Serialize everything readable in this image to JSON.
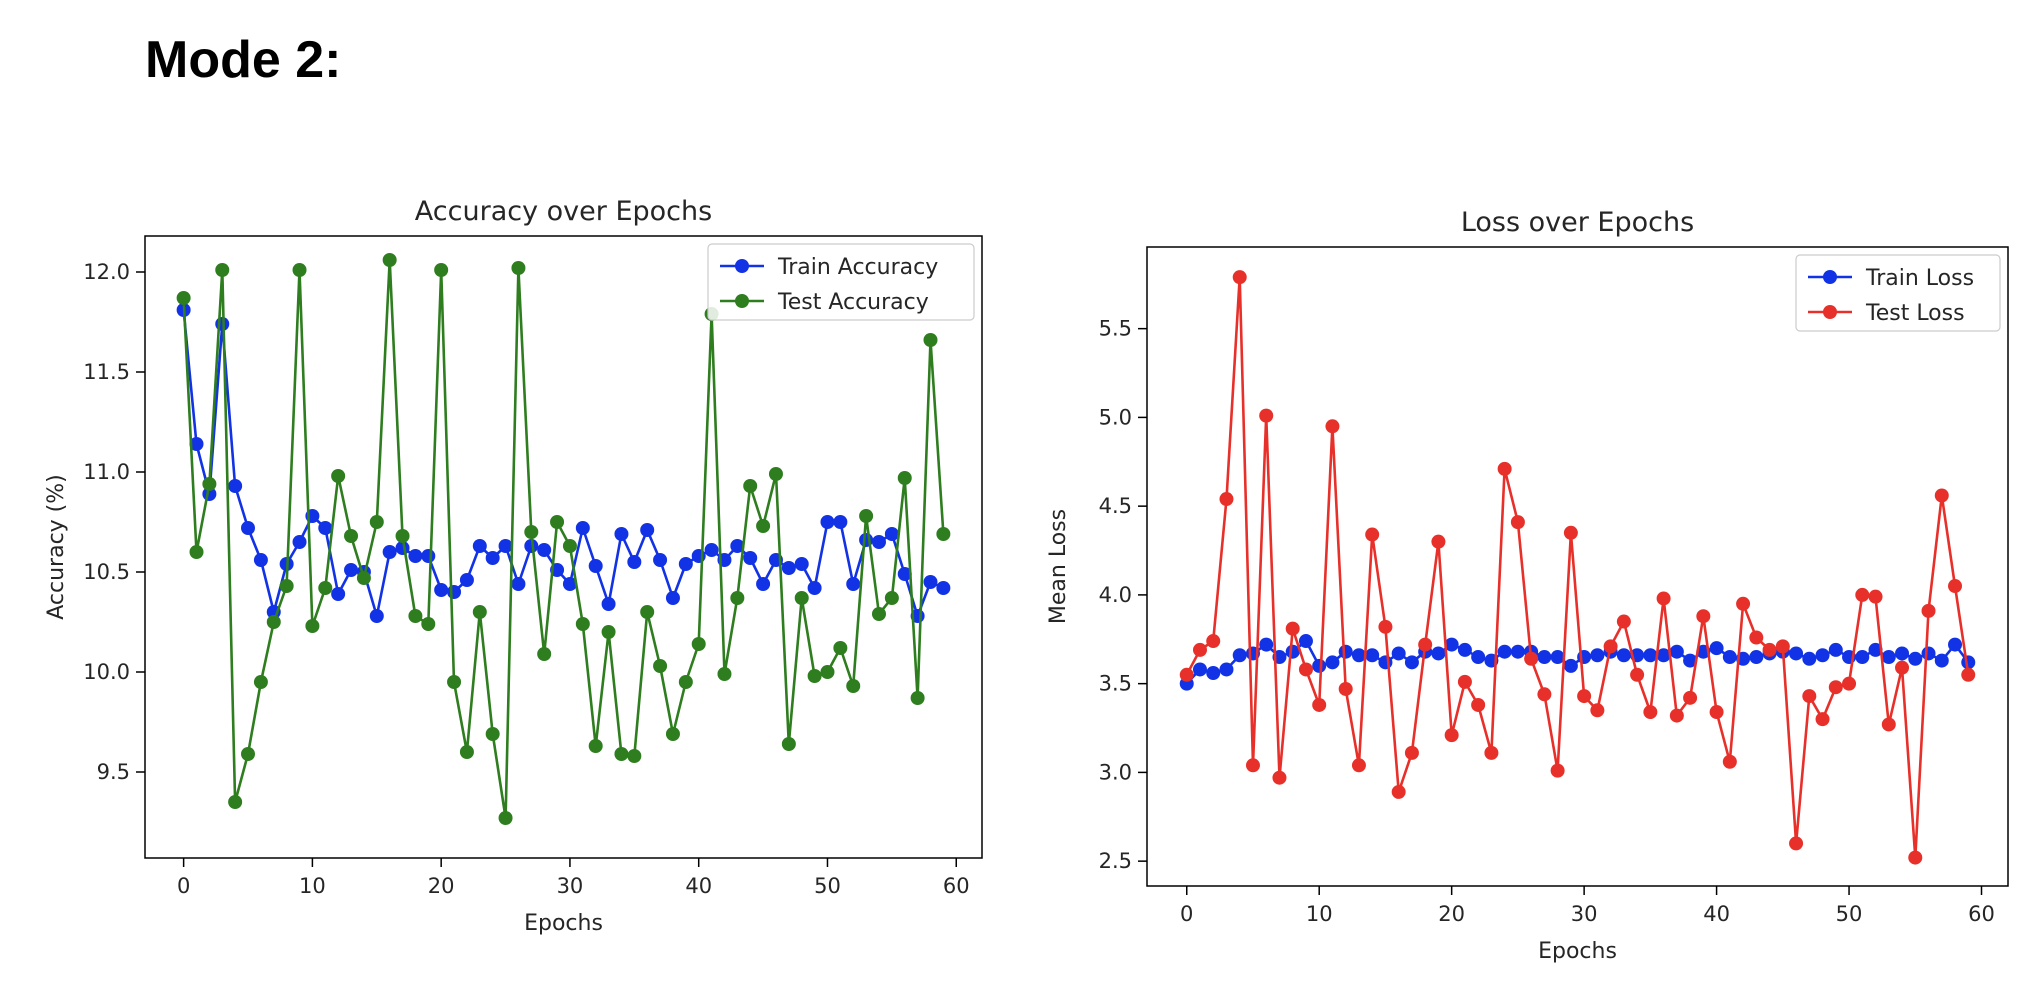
{
  "heading": "Mode 2:",
  "colors": {
    "train": "#1232e6",
    "test_acc": "#2e7d1f",
    "test_loss": "#e8302a"
  },
  "chart_data": [
    {
      "type": "line",
      "title": "Accuracy over Epochs",
      "xlabel": "Epochs",
      "ylabel": "Accuracy (%)",
      "xlim": [
        -3,
        62
      ],
      "ylim": [
        9.07,
        12.18
      ],
      "xticks": [
        0,
        10,
        20,
        30,
        40,
        50,
        60
      ],
      "yticks": [
        9.5,
        10.0,
        10.5,
        11.0,
        11.5,
        12.0
      ],
      "ytick_decimals": 1,
      "legend": "top-right",
      "grid": false,
      "x": [
        0,
        1,
        2,
        3,
        4,
        5,
        6,
        7,
        8,
        9,
        10,
        11,
        12,
        13,
        14,
        15,
        16,
        17,
        18,
        19,
        20,
        21,
        22,
        23,
        24,
        25,
        26,
        27,
        28,
        29,
        30,
        31,
        32,
        33,
        34,
        35,
        36,
        37,
        38,
        39,
        40,
        41,
        42,
        43,
        44,
        45,
        46,
        47,
        48,
        49,
        50,
        51,
        52,
        53,
        54,
        55,
        56,
        57,
        58,
        59
      ],
      "series": [
        {
          "name": "Train Accuracy",
          "color": "#1232e6",
          "values": [
            11.81,
            11.14,
            10.89,
            11.74,
            10.93,
            10.72,
            10.56,
            10.3,
            10.54,
            10.65,
            10.78,
            10.72,
            10.39,
            10.51,
            10.5,
            10.28,
            10.6,
            10.62,
            10.58,
            10.58,
            10.41,
            10.4,
            10.46,
            10.63,
            10.57,
            10.63,
            10.44,
            10.63,
            10.61,
            10.51,
            10.44,
            10.72,
            10.53,
            10.34,
            10.69,
            10.55,
            10.71,
            10.56,
            10.37,
            10.54,
            10.58,
            10.61,
            10.56,
            10.63,
            10.57,
            10.44,
            10.56,
            10.52,
            10.54,
            10.42,
            10.75,
            10.75,
            10.44,
            10.66,
            10.65,
            10.69,
            10.49,
            10.28,
            10.45,
            10.42
          ]
        },
        {
          "name": "Test Accuracy",
          "color": "#2e7d1f",
          "values": [
            11.87,
            10.6,
            10.94,
            12.01,
            9.35,
            9.59,
            9.95,
            10.25,
            10.43,
            12.01,
            10.23,
            10.42,
            10.98,
            10.68,
            10.47,
            10.75,
            12.06,
            10.68,
            10.28,
            10.24,
            12.01,
            9.95,
            9.6,
            10.3,
            9.69,
            9.27,
            12.02,
            10.7,
            10.09,
            10.75,
            10.63,
            10.24,
            9.63,
            10.2,
            9.59,
            9.58,
            10.3,
            10.03,
            9.69,
            9.95,
            10.14,
            11.79,
            9.99,
            10.37,
            10.93,
            10.73,
            10.99,
            9.64,
            10.37,
            9.98,
            10.0,
            10.12,
            9.93,
            10.78,
            10.29,
            10.37,
            10.97,
            9.87,
            11.66,
            10.69
          ]
        }
      ]
    },
    {
      "type": "line",
      "title": "Loss over Epochs",
      "xlabel": "Epochs",
      "ylabel": "Mean Loss",
      "xlim": [
        -3,
        62
      ],
      "ylim": [
        2.36,
        5.96
      ],
      "xticks": [
        0,
        10,
        20,
        30,
        40,
        50,
        60
      ],
      "yticks": [
        2.5,
        3.0,
        3.5,
        4.0,
        4.5,
        5.0,
        5.5
      ],
      "ytick_decimals": 1,
      "legend": "top-right",
      "grid": false,
      "x": [
        0,
        1,
        2,
        3,
        4,
        5,
        6,
        7,
        8,
        9,
        10,
        11,
        12,
        13,
        14,
        15,
        16,
        17,
        18,
        19,
        20,
        21,
        22,
        23,
        24,
        25,
        26,
        27,
        28,
        29,
        30,
        31,
        32,
        33,
        34,
        35,
        36,
        37,
        38,
        39,
        40,
        41,
        42,
        43,
        44,
        45,
        46,
        47,
        48,
        49,
        50,
        51,
        52,
        53,
        54,
        55,
        56,
        57,
        58,
        59
      ],
      "series": [
        {
          "name": "Train Loss",
          "color": "#1232e6",
          "values": [
            3.5,
            3.58,
            3.56,
            3.58,
            3.66,
            3.67,
            3.72,
            3.65,
            3.68,
            3.74,
            3.6,
            3.62,
            3.68,
            3.66,
            3.66,
            3.62,
            3.67,
            3.62,
            3.68,
            3.67,
            3.72,
            3.69,
            3.65,
            3.63,
            3.68,
            3.68,
            3.68,
            3.65,
            3.65,
            3.6,
            3.65,
            3.66,
            3.68,
            3.66,
            3.66,
            3.66,
            3.66,
            3.68,
            3.63,
            3.68,
            3.7,
            3.65,
            3.64,
            3.65,
            3.67,
            3.68,
            3.67,
            3.64,
            3.66,
            3.69,
            3.65,
            3.65,
            3.69,
            3.65,
            3.67,
            3.64,
            3.67,
            3.63,
            3.72,
            3.62
          ]
        },
        {
          "name": "Test Loss",
          "color": "#e8302a",
          "values": [
            3.55,
            3.69,
            3.74,
            4.54,
            5.79,
            3.04,
            5.01,
            2.97,
            3.81,
            3.58,
            3.38,
            4.95,
            3.47,
            3.04,
            4.34,
            3.82,
            2.89,
            3.11,
            3.72,
            4.3,
            3.21,
            3.51,
            3.38,
            3.11,
            4.71,
            4.41,
            3.64,
            3.44,
            3.01,
            4.35,
            3.43,
            3.35,
            3.71,
            3.85,
            3.55,
            3.34,
            3.98,
            3.32,
            3.42,
            3.88,
            3.34,
            3.06,
            3.95,
            3.76,
            3.69,
            3.71,
            2.6,
            3.43,
            3.3,
            3.48,
            3.5,
            4.0,
            3.99,
            3.27,
            3.59,
            2.52,
            3.91,
            4.56,
            4.05,
            3.55
          ]
        }
      ]
    }
  ]
}
